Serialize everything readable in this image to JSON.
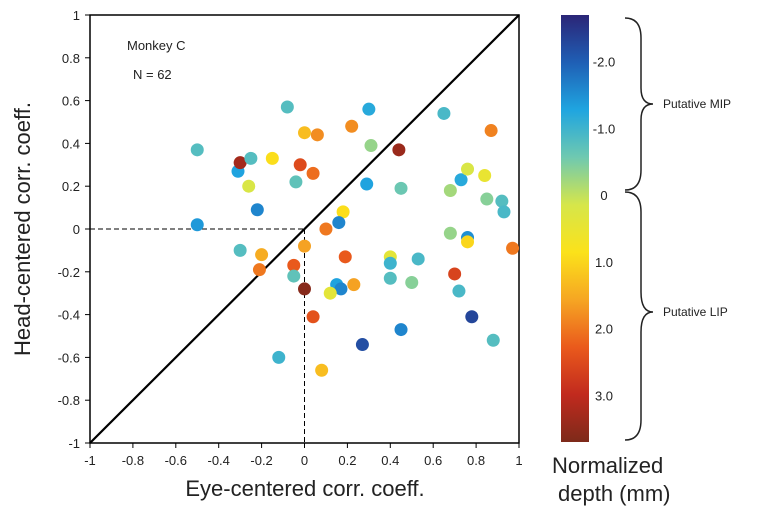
{
  "chart_data": {
    "type": "scatter",
    "xlabel": "Eye-centered corr. coeff.",
    "ylabel": "Head-centered corr. coeff.",
    "xlim": [
      -1,
      1
    ],
    "ylim": [
      -1,
      1
    ],
    "xticks": [
      "-1",
      "-0.8",
      "-0.6",
      "-0.4",
      "-0.2",
      "0",
      "0.2",
      "0.4",
      "0.6",
      "0.8",
      "1"
    ],
    "yticks": [
      "1",
      "0.8",
      "0.6",
      "0.4",
      "0.2",
      "0",
      "-0.2",
      "-0.4",
      "-0.6",
      "-0.8",
      "-1"
    ],
    "annotations": [
      "Monkey C",
      "N = 62"
    ],
    "grid": false,
    "diagonal_line": true,
    "dashed_reference_at_zero": true,
    "colorbar": {
      "label_line1": "Normalized",
      "label_line2": "depth (mm)",
      "ticks": [
        "-2.0",
        "-1.0",
        "0",
        "1.0",
        "2.0",
        "3.0"
      ],
      "tick_values": [
        -2.0,
        -1.0,
        0.0,
        1.0,
        2.0,
        3.0
      ],
      "range": [
        -2.7,
        3.7
      ],
      "colormap": [
        "#2b2577",
        "#1f5fb5",
        "#1fa5e0",
        "#6fc9b0",
        "#d6e64a",
        "#fbe21a",
        "#f6a623",
        "#ea5a1c",
        "#c12a1e",
        "#7d2a1a"
      ]
    },
    "brackets": [
      "Putative MIP",
      "Putative LIP"
    ],
    "points": [
      {
        "x": -0.5,
        "y": 0.37,
        "depth": -0.8
      },
      {
        "x": -0.5,
        "y": 0.02,
        "depth": -1.4
      },
      {
        "x": -0.31,
        "y": 0.27,
        "depth": -1.3
      },
      {
        "x": -0.3,
        "y": 0.31,
        "depth": 3.3
      },
      {
        "x": -0.25,
        "y": 0.33,
        "depth": -0.8
      },
      {
        "x": -0.26,
        "y": 0.2,
        "depth": 0.2
      },
      {
        "x": -0.22,
        "y": 0.09,
        "depth": -1.6
      },
      {
        "x": -0.3,
        "y": -0.1,
        "depth": -0.8
      },
      {
        "x": -0.2,
        "y": -0.12,
        "depth": 1.5
      },
      {
        "x": -0.21,
        "y": -0.19,
        "depth": 2.0
      },
      {
        "x": -0.15,
        "y": 0.33,
        "depth": 0.9
      },
      {
        "x": -0.08,
        "y": 0.57,
        "depth": -0.8
      },
      {
        "x": -0.04,
        "y": 0.22,
        "depth": -0.7
      },
      {
        "x": -0.02,
        "y": 0.3,
        "depth": 2.5
      },
      {
        "x": 0.0,
        "y": 0.45,
        "depth": 1.3
      },
      {
        "x": 0.06,
        "y": 0.44,
        "depth": 1.8
      },
      {
        "x": 0.04,
        "y": 0.26,
        "depth": 2.1
      },
      {
        "x": 0.0,
        "y": -0.08,
        "depth": 1.6
      },
      {
        "x": -0.05,
        "y": -0.17,
        "depth": 2.3
      },
      {
        "x": -0.05,
        "y": -0.22,
        "depth": -0.7
      },
      {
        "x": 0.0,
        "y": -0.28,
        "depth": 3.6
      },
      {
        "x": 0.04,
        "y": -0.41,
        "depth": 2.4
      },
      {
        "x": -0.12,
        "y": -0.6,
        "depth": -1.0
      },
      {
        "x": 0.08,
        "y": -0.66,
        "depth": 1.3
      },
      {
        "x": 0.1,
        "y": 0.0,
        "depth": 2.0
      },
      {
        "x": 0.18,
        "y": 0.08,
        "depth": 0.9
      },
      {
        "x": 0.15,
        "y": -0.26,
        "depth": -1.3
      },
      {
        "x": 0.17,
        "y": -0.28,
        "depth": -1.6
      },
      {
        "x": 0.12,
        "y": -0.3,
        "depth": 0.4
      },
      {
        "x": 0.16,
        "y": 0.03,
        "depth": -1.6
      },
      {
        "x": 0.19,
        "y": -0.13,
        "depth": 2.3
      },
      {
        "x": 0.23,
        "y": -0.26,
        "depth": 1.6
      },
      {
        "x": 0.22,
        "y": 0.48,
        "depth": 1.8
      },
      {
        "x": 0.27,
        "y": -0.54,
        "depth": -2.2
      },
      {
        "x": 0.3,
        "y": 0.56,
        "depth": -1.2
      },
      {
        "x": 0.31,
        "y": 0.39,
        "depth": -0.3
      },
      {
        "x": 0.29,
        "y": 0.21,
        "depth": -1.3
      },
      {
        "x": 0.4,
        "y": -0.13,
        "depth": 0.4
      },
      {
        "x": 0.4,
        "y": -0.16,
        "depth": -1.0
      },
      {
        "x": 0.4,
        "y": -0.23,
        "depth": -0.8
      },
      {
        "x": 0.44,
        "y": 0.37,
        "depth": 3.4
      },
      {
        "x": 0.45,
        "y": 0.19,
        "depth": -0.6
      },
      {
        "x": 0.45,
        "y": -0.47,
        "depth": -1.6
      },
      {
        "x": 0.5,
        "y": -0.25,
        "depth": -0.4
      },
      {
        "x": 0.53,
        "y": -0.14,
        "depth": -0.9
      },
      {
        "x": 0.65,
        "y": 0.54,
        "depth": -0.9
      },
      {
        "x": 0.68,
        "y": 0.18,
        "depth": -0.2
      },
      {
        "x": 0.68,
        "y": -0.02,
        "depth": -0.3
      },
      {
        "x": 0.7,
        "y": -0.21,
        "depth": 2.6
      },
      {
        "x": 0.72,
        "y": -0.29,
        "depth": -0.9
      },
      {
        "x": 0.73,
        "y": 0.23,
        "depth": -1.2
      },
      {
        "x": 0.76,
        "y": 0.28,
        "depth": 0.2
      },
      {
        "x": 0.76,
        "y": -0.04,
        "depth": -1.5
      },
      {
        "x": 0.76,
        "y": -0.06,
        "depth": 1.0
      },
      {
        "x": 0.78,
        "y": -0.41,
        "depth": -2.3
      },
      {
        "x": 0.84,
        "y": 0.25,
        "depth": 0.5
      },
      {
        "x": 0.85,
        "y": 0.14,
        "depth": -0.4
      },
      {
        "x": 0.87,
        "y": 0.46,
        "depth": 1.9
      },
      {
        "x": 0.88,
        "y": -0.52,
        "depth": -0.8
      },
      {
        "x": 0.92,
        "y": 0.13,
        "depth": -0.8
      },
      {
        "x": 0.93,
        "y": 0.08,
        "depth": -0.9
      },
      {
        "x": 0.97,
        "y": -0.09,
        "depth": 2.0
      }
    ]
  }
}
